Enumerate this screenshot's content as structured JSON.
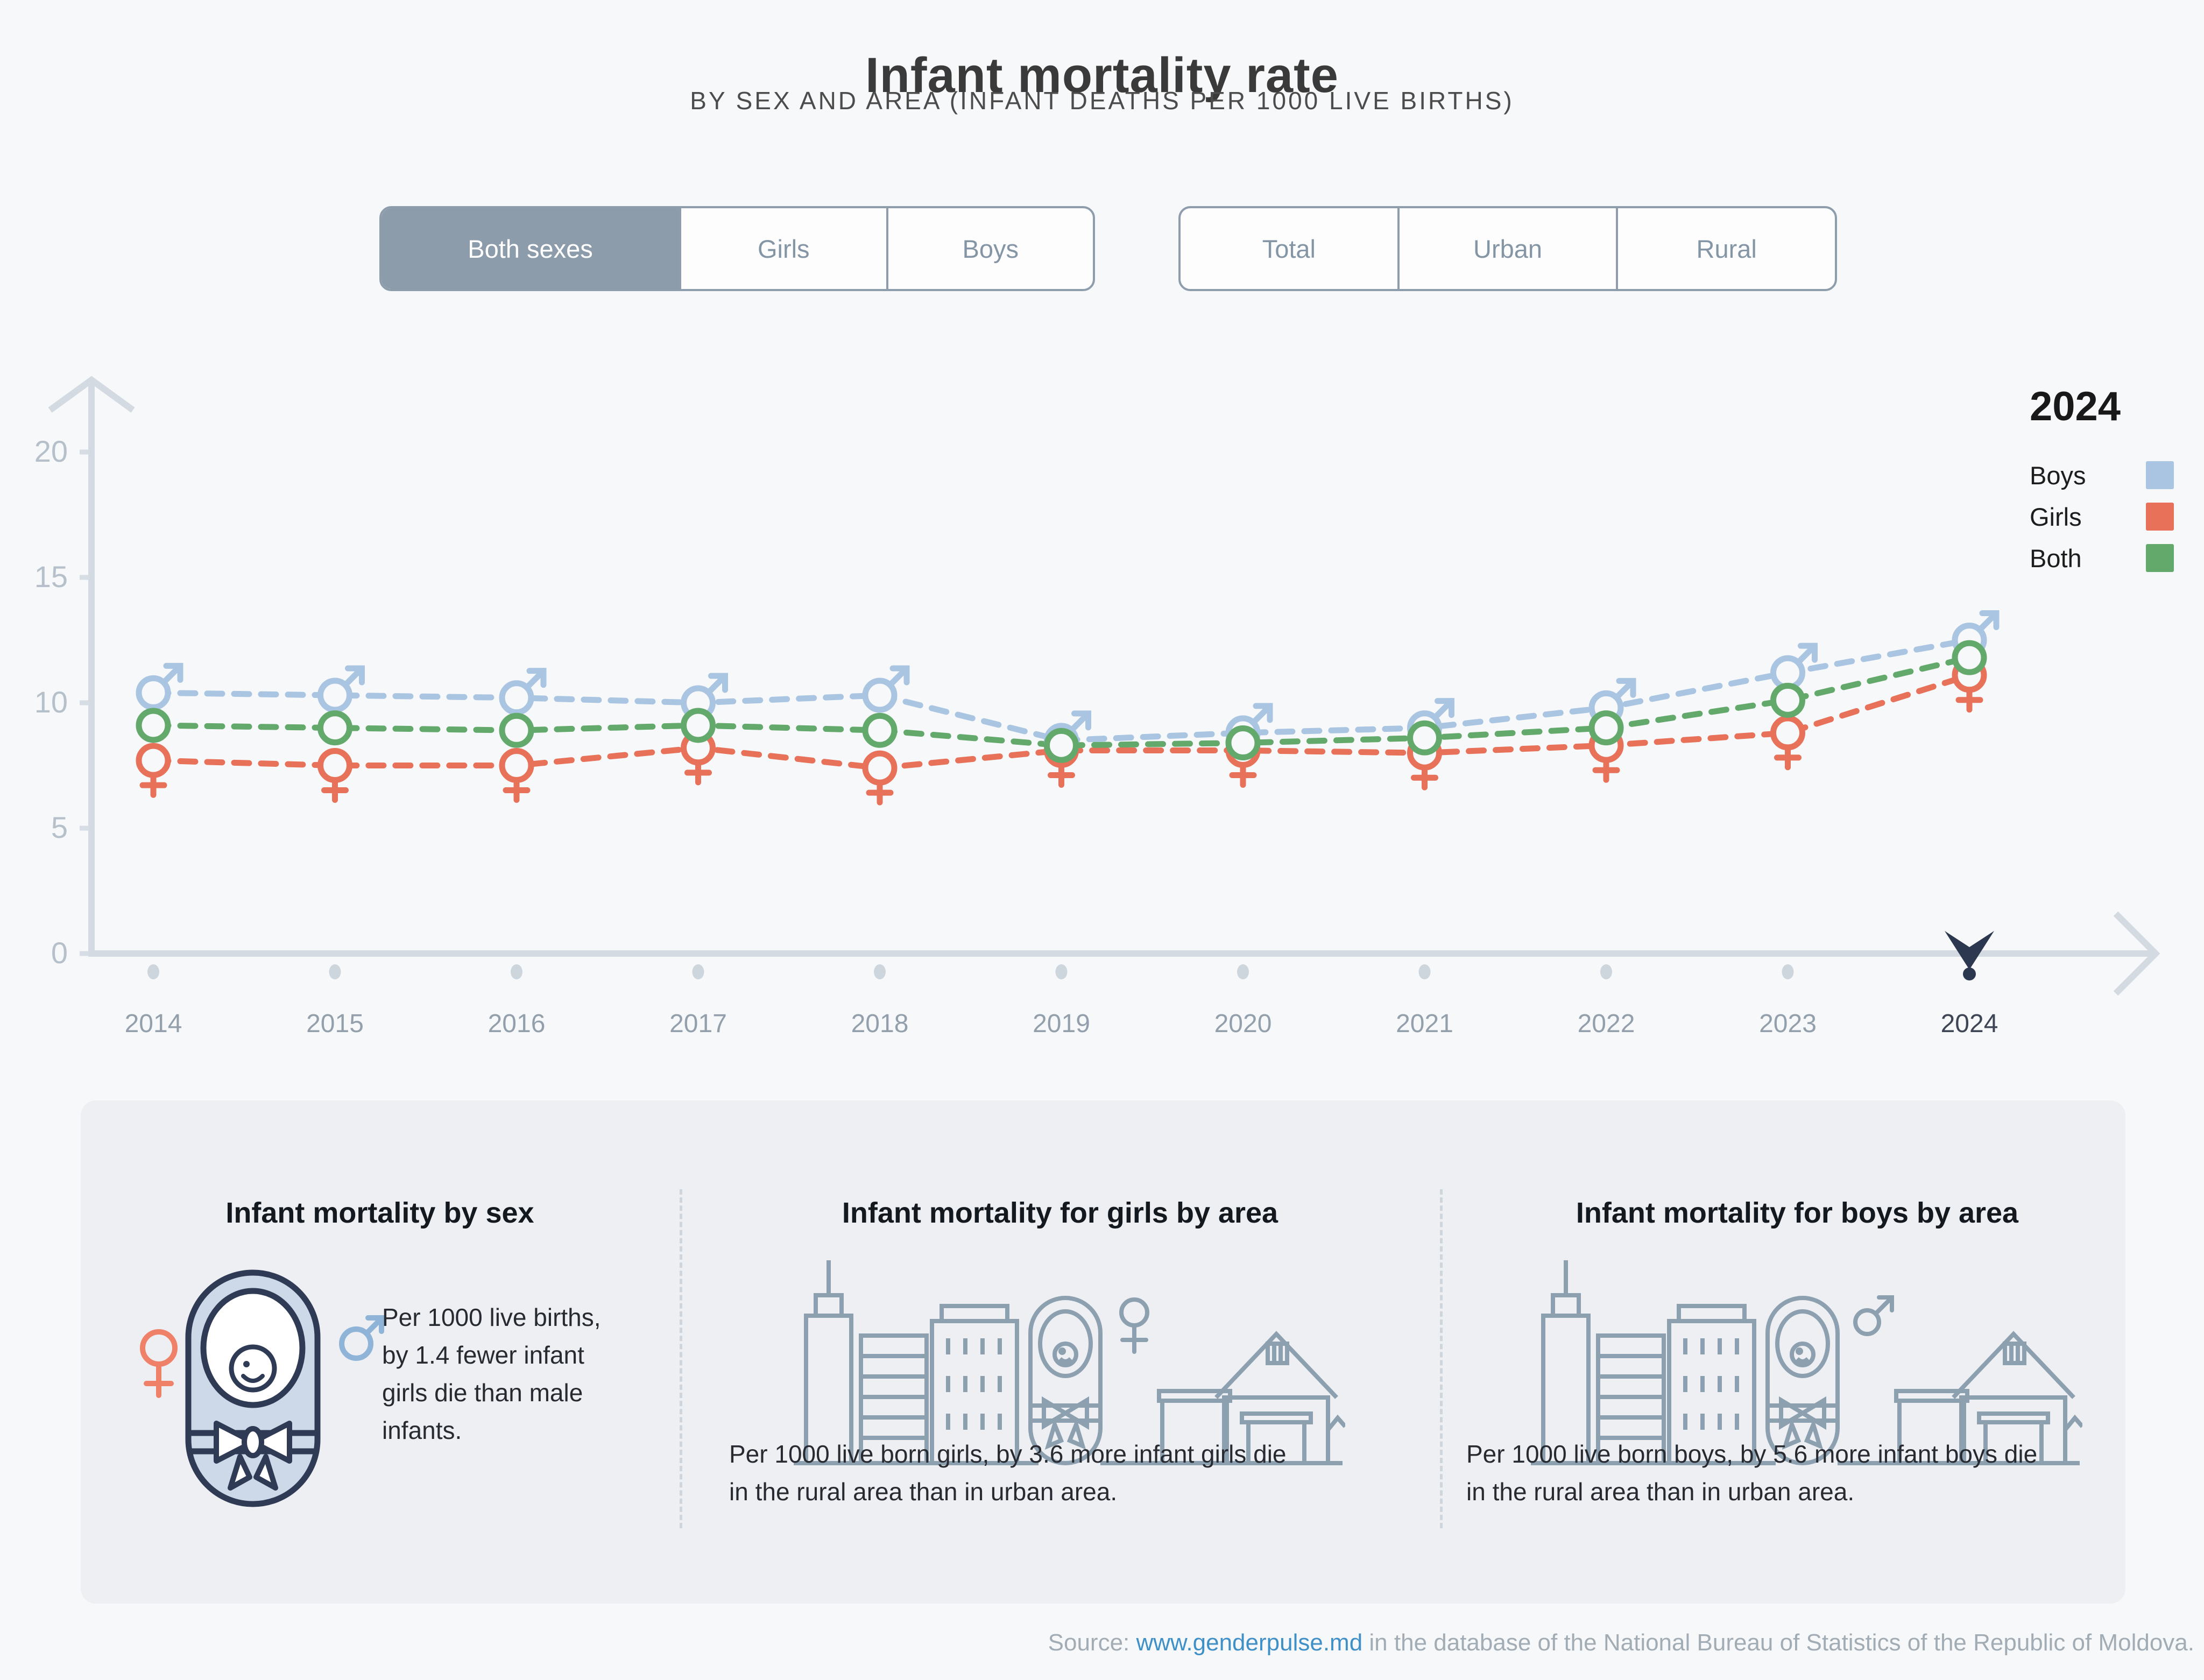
{
  "header": {
    "title": "Infant mortality rate",
    "subtitle": "BY SEX AND AREA (INFANT DEATHS PER 1000 LIVE BIRTHS)"
  },
  "toggles": {
    "sex": {
      "options": [
        {
          "label": "Both sexes",
          "selected": true
        },
        {
          "label": "Girls",
          "selected": false
        },
        {
          "label": "Boys",
          "selected": false
        }
      ]
    },
    "area": {
      "options": [
        {
          "label": "Total",
          "selected": false
        },
        {
          "label": "Urban",
          "selected": false
        },
        {
          "label": "Rural",
          "selected": false
        }
      ]
    }
  },
  "legend": {
    "year": "2024",
    "items": [
      {
        "label": "Boys",
        "color": "#a9c5e2"
      },
      {
        "label": "Girls",
        "color": "#e8715a"
      },
      {
        "label": "Both",
        "color": "#63a96c"
      }
    ]
  },
  "chart_data": {
    "type": "line",
    "x": [
      2014,
      2015,
      2016,
      2017,
      2018,
      2019,
      2020,
      2021,
      2022,
      2023,
      2024
    ],
    "series": [
      {
        "name": "Boys",
        "marker": "male",
        "color": "#a9c5e2",
        "values": [
          10.4,
          10.3,
          10.2,
          10.0,
          10.3,
          8.5,
          8.8,
          9.0,
          9.8,
          11.2,
          12.5
        ]
      },
      {
        "name": "Girls",
        "marker": "female",
        "color": "#e8715a",
        "values": [
          7.7,
          7.5,
          7.5,
          8.2,
          7.4,
          8.1,
          8.1,
          8.0,
          8.3,
          8.8,
          11.1
        ]
      },
      {
        "name": "Both",
        "marker": "circle",
        "color": "#63a96c",
        "values": [
          9.1,
          9.0,
          8.9,
          9.1,
          8.9,
          8.3,
          8.4,
          8.6,
          9.0,
          10.1,
          11.8
        ]
      }
    ],
    "ylim": [
      0,
      20
    ],
    "yticks": [
      0,
      5,
      10,
      15,
      20
    ],
    "selected_year": 2024,
    "grid": false,
    "legend_position": "top-right",
    "title": "Infant mortality rate",
    "xlabel": "",
    "ylabel": ""
  },
  "cards": [
    {
      "title": "Infant mortality by sex",
      "text_lines": [
        "Per 1000 live births,",
        "by 1.4 fewer infant",
        "girls die than male",
        "infants."
      ]
    },
    {
      "title": "Infant mortality for girls by area",
      "text_lines": [
        "Per 1000 live born girls, by 3.6 more infant girls die",
        "in the rural area than in urban area."
      ]
    },
    {
      "title": "Infant mortality for boys by area",
      "text_lines": [
        "Per 1000 live born boys, by 5.6 more infant boys die",
        "in the rural area than in urban area."
      ]
    }
  ],
  "footer": {
    "prefix": "Source: ",
    "link": "www.genderpulse.md",
    "suffix": " in the database of the National Bureau of Statistics of the Republic of Moldova."
  }
}
